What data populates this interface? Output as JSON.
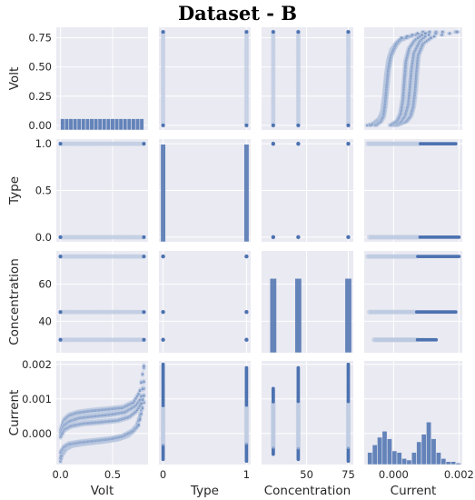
{
  "title": "Dataset - B",
  "chart_data": {
    "type": "scatter",
    "title": "Dataset - B",
    "subtype": "pairplot",
    "variables": [
      "Volt",
      "Type",
      "Concentration",
      "Current"
    ],
    "axis_labels": {
      "Volt": "Volt",
      "Type": "Type",
      "Concentration": "Concentration",
      "Current": "Current"
    },
    "ranges": {
      "Volt": [
        -0.04,
        0.84
      ],
      "Type": [
        -0.05,
        1.05
      ],
      "Concentration": [
        23,
        78
      ],
      "Current": [
        -0.0009,
        0.0021
      ]
    },
    "ticks": {
      "Volt": {
        "y": [
          {
            "v": 0.0,
            "label": "0.00"
          },
          {
            "v": 0.25,
            "label": "0.25"
          },
          {
            "v": 0.5,
            "label": "0.50"
          },
          {
            "v": 0.75,
            "label": "0.75"
          }
        ],
        "x": [
          {
            "v": 0.0,
            "label": "0.0"
          },
          {
            "v": 0.5,
            "label": "0.5"
          }
        ]
      },
      "Type": {
        "y": [
          {
            "v": 0.0,
            "label": "0.0"
          },
          {
            "v": 0.5,
            "label": "0.5"
          },
          {
            "v": 1.0,
            "label": "1.0"
          }
        ],
        "x": [
          {
            "v": 0,
            "label": "0"
          },
          {
            "v": 1,
            "label": "1"
          }
        ]
      },
      "Concentration": {
        "y": [
          {
            "v": 40,
            "label": "40"
          },
          {
            "v": 60,
            "label": "60"
          }
        ],
        "x": [
          {
            "v": 50,
            "label": "50"
          },
          {
            "v": 75,
            "label": "75"
          }
        ]
      },
      "Current": {
        "y": [
          {
            "v": 0.0,
            "label": "0.000"
          },
          {
            "v": 0.001,
            "label": "0.001"
          },
          {
            "v": 0.002,
            "label": "0.002"
          }
        ],
        "x": [
          {
            "v": 0.0,
            "label": "0.000"
          },
          {
            "v": 0.002,
            "label": "0.002"
          }
        ]
      }
    },
    "diagonal_histograms": {
      "Volt": {
        "bins": [
          0.0,
          0.04,
          0.08,
          0.12,
          0.16,
          0.2,
          0.24,
          0.28,
          0.32,
          0.36,
          0.4,
          0.44,
          0.48,
          0.52,
          0.56,
          0.6,
          0.64,
          0.68,
          0.72,
          0.76,
          0.8
        ],
        "counts": [
          1,
          1,
          1,
          1,
          1,
          1,
          1,
          1,
          1,
          1,
          1,
          1,
          1,
          1,
          1,
          1,
          1,
          1,
          1,
          1
        ],
        "relative_height": 0.11
      },
      "Type": {
        "bins": [
          -0.03,
          0.03,
          0.97,
          1.03
        ],
        "counts": [
          1,
          0,
          1
        ],
        "relative_height": 0.95
      },
      "Concentration": {
        "bins": [
          28,
          32,
          43,
          47,
          73,
          77
        ],
        "counts": [
          1,
          0,
          1,
          0,
          1
        ],
        "relative_height": 0.73
      },
      "Current": {
        "bins": [
          -0.0008,
          -0.00065,
          -0.0005,
          -0.00035,
          -0.0002,
          -5e-05,
          0.0001,
          0.00025,
          0.0004,
          0.00055,
          0.0007,
          0.00085,
          0.001,
          0.00115,
          0.0013,
          0.00145,
          0.0016,
          0.00175,
          0.0019,
          0.00205
        ],
        "counts": [
          8,
          13,
          18,
          22,
          17,
          9,
          8,
          4,
          3,
          8,
          15,
          20,
          28,
          17,
          8,
          4,
          2,
          2,
          1
        ],
        "relative_height": 0.41
      }
    },
    "concentration_levels": [
      30,
      45,
      75
    ],
    "type_levels": [
      0,
      1
    ],
    "curves_volt_vs_current": [
      {
        "level": 75,
        "points": [
          [
            0.0,
            -0.0008
          ],
          [
            0.02,
            -0.0006
          ],
          [
            0.06,
            -0.00042
          ],
          [
            0.12,
            -0.00033
          ],
          [
            0.25,
            -0.00027
          ],
          [
            0.4,
            -0.00022
          ],
          [
            0.55,
            -0.00015
          ],
          [
            0.65,
            -5e-05
          ],
          [
            0.72,
            0.00015
          ],
          [
            0.76,
            0.0005
          ],
          [
            0.79,
            0.0011
          ],
          [
            0.8,
            0.0019
          ]
        ]
      },
      {
        "level": 75,
        "points": [
          [
            0.0,
            0.0001
          ],
          [
            0.03,
            0.00038
          ],
          [
            0.08,
            0.00052
          ],
          [
            0.16,
            0.0006
          ],
          [
            0.3,
            0.00066
          ],
          [
            0.45,
            0.0007
          ],
          [
            0.6,
            0.00075
          ],
          [
            0.7,
            0.0009
          ],
          [
            0.76,
            0.0012
          ],
          [
            0.8,
            0.00195
          ]
        ]
      },
      {
        "level": 45,
        "points": [
          [
            0.0,
            -0.0007
          ],
          [
            0.02,
            -0.00052
          ],
          [
            0.06,
            -0.00037
          ],
          [
            0.14,
            -0.0003
          ],
          [
            0.3,
            -0.00024
          ],
          [
            0.45,
            -0.00019
          ],
          [
            0.58,
            -0.00012
          ],
          [
            0.67,
            2e-05
          ],
          [
            0.73,
            0.0002
          ],
          [
            0.77,
            0.00055
          ],
          [
            0.8,
            0.0013
          ]
        ]
      },
      {
        "level": 45,
        "points": [
          [
            0.0,
            0.0
          ],
          [
            0.03,
            0.00022
          ],
          [
            0.08,
            0.00035
          ],
          [
            0.18,
            0.00045
          ],
          [
            0.32,
            0.0005
          ],
          [
            0.48,
            0.00055
          ],
          [
            0.62,
            0.00062
          ],
          [
            0.72,
            0.0008
          ],
          [
            0.77,
            0.001
          ],
          [
            0.8,
            0.0015
          ]
        ]
      },
      {
        "level": 30,
        "points": [
          [
            0.0,
            -0.00055
          ],
          [
            0.03,
            -0.0004
          ],
          [
            0.08,
            -0.00031
          ],
          [
            0.18,
            -0.00026
          ],
          [
            0.33,
            -0.00021
          ],
          [
            0.48,
            -0.00016
          ],
          [
            0.6,
            -8e-05
          ],
          [
            0.7,
            8e-05
          ],
          [
            0.75,
            0.00025
          ],
          [
            0.8,
            0.0009
          ]
        ]
      },
      {
        "level": 30,
        "points": [
          [
            0.0,
            -0.0001
          ],
          [
            0.04,
            0.00012
          ],
          [
            0.1,
            0.00022
          ],
          [
            0.22,
            0.00029
          ],
          [
            0.38,
            0.00033
          ],
          [
            0.55,
            0.00038
          ],
          [
            0.66,
            0.00048
          ],
          [
            0.73,
            0.00065
          ],
          [
            0.78,
            0.0009
          ],
          [
            0.8,
            0.0011
          ]
        ]
      }
    ],
    "current_ranges_by_type": {
      "0": [
        -0.00075,
        0.002
      ],
      "1": [
        -0.0008,
        0.0019
      ]
    },
    "current_ranges_by_concentration": {
      "30": [
        -0.0006,
        0.0013
      ],
      "45": [
        -0.00075,
        0.0019
      ],
      "75": [
        -0.0008,
        0.002
      ]
    }
  }
}
